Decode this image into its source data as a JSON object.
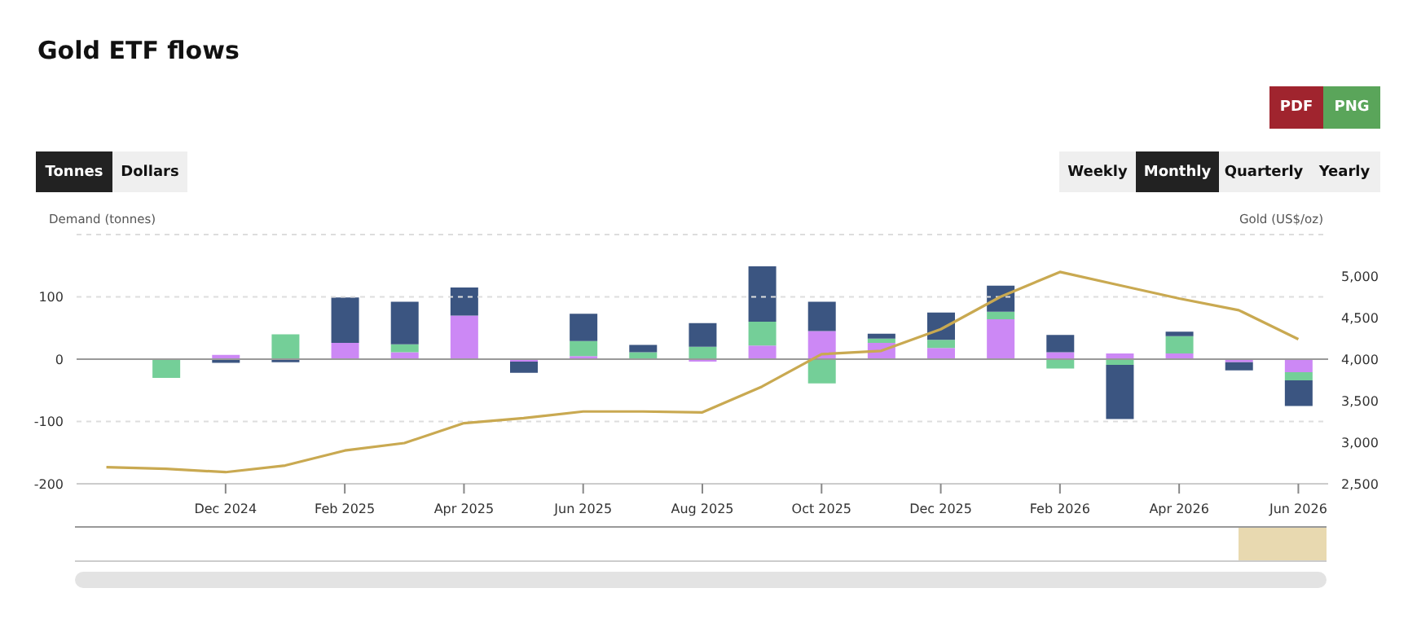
{
  "chart_data": {
    "type": "bar",
    "title": "Gold ETF flows",
    "ylabel": "Demand (tonnes)",
    "y2label": "Gold (US$/oz)",
    "annotations": [
      "PDF",
      "PNG",
      "Tonnes",
      "Dollars",
      "Weekly",
      "Monthly",
      "Quarterly",
      "Yearly"
    ],
    "categories": [
      null,
      null,
      "Dec 2024",
      null,
      "Feb 2025",
      null,
      "Apr 2025",
      null,
      "Jun 2025",
      null,
      "Aug 2025",
      null,
      "Oct 2025",
      null,
      "Dec 2025",
      null,
      "Feb 2026",
      null,
      "Apr 2026",
      null,
      "Jun 2026"
    ],
    "stacked": true,
    "series": [
      {
        "color": "#cc88f5",
        "values": [
          null,
          0,
          7,
          0,
          26,
          11,
          70,
          -4,
          5,
          null,
          -4,
          22,
          45,
          26,
          18,
          64,
          11,
          9,
          9,
          -5,
          -21
        ]
      },
      {
        "color": "#74cf98",
        "values": [
          null,
          -30,
          0,
          40,
          0,
          13,
          0,
          0,
          24,
          11,
          20,
          38,
          -39,
          7,
          13,
          12,
          -15,
          -9,
          28,
          0,
          -13
        ]
      },
      {
        "color": "#3b5581",
        "values": [
          null,
          0,
          -6,
          -5,
          73,
          68,
          45,
          -18,
          44,
          12,
          38,
          89,
          47,
          8,
          44,
          42,
          28,
          -87,
          7,
          -13,
          -41
        ]
      },
      {
        "type": "line",
        "axis": "y2",
        "color": "#c9a951",
        "values": [
          2700,
          2680,
          2640,
          2720,
          2900,
          2990,
          3230,
          3290,
          3370,
          3370,
          3360,
          3670,
          4060,
          4100,
          4360,
          4750,
          5050,
          4890,
          4730,
          4590,
          4240
        ]
      }
    ],
    "marker": "none",
    "ylim": [
      -200,
      200
    ],
    "yticks": [
      -200,
      -100,
      0,
      100,
      {
        "value": 200,
        "label": null
      }
    ],
    "y2lim": [
      2500,
      5500
    ],
    "y2ticks": [
      {
        "value": 2500,
        "label": "2,500"
      },
      {
        "value": 3000,
        "label": "3,000"
      },
      {
        "value": 3500,
        "label": "3,500"
      },
      {
        "value": 4000,
        "label": "4,000"
      },
      {
        "value": 4500,
        "label": "4,500"
      },
      {
        "value": 5000,
        "label": "5,000"
      },
      {
        "value": 5500,
        "label": null
      }
    ],
    "grid": "y",
    "ref_lines": [
      {
        "axis": "y",
        "value": 0,
        "color": "#999999"
      }
    ]
  }
}
